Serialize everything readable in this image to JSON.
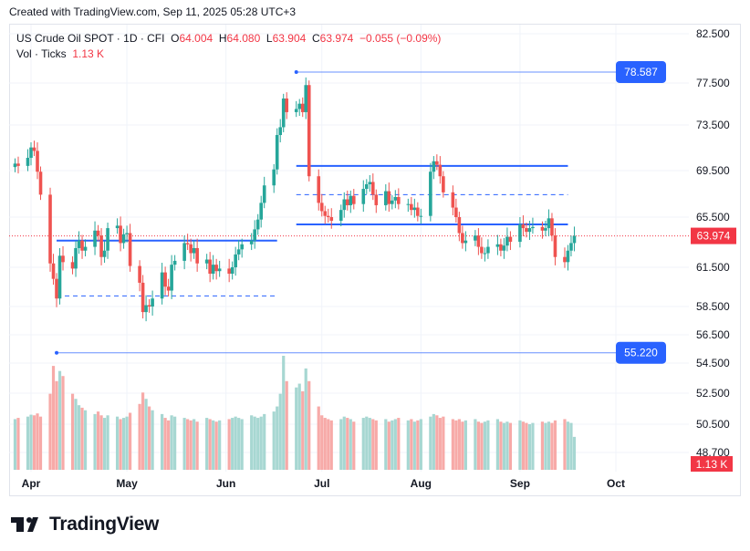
{
  "header": {
    "created": "Created with TradingView.com, Sep 11, 2025 05:28 UTC+3"
  },
  "legend": {
    "symbol": "US Crude Oil SPOT · 1D · CFI",
    "o_label": "O",
    "o": "64.004",
    "h_label": "H",
    "h": "64.080",
    "l_label": "L",
    "l": "63.904",
    "c_label": "C",
    "c": "63.974",
    "change": "−0.055 (−0.09%)",
    "vol_label": "Vol · Ticks",
    "vol": "1.13 K"
  },
  "brand": {
    "name": "TradingView"
  },
  "colors": {
    "up": "#26a69a",
    "down": "#ef5350",
    "line": "#2962ff",
    "current": "#f23645",
    "grid": "#f0f3fa"
  },
  "chart_data": {
    "type": "candlestick",
    "y_axis": {
      "ticks": [
        82.5,
        77.5,
        73.5,
        69.5,
        65.5,
        61.5,
        58.5,
        56.5,
        54.5,
        52.5,
        50.5,
        48.7
      ],
      "tick_labels": [
        "82.500",
        "77.500",
        "73.500",
        "69.500",
        "65.500",
        "61.500",
        "58.500",
        "56.500",
        "54.500",
        "52.500",
        "50.500",
        "48.700"
      ],
      "scale": "log"
    },
    "x_axis": {
      "labels": [
        "Apr",
        "May",
        "Jun",
        "Jul",
        "Aug",
        "Sep",
        "Oct"
      ],
      "label_dates": [
        "2025-04-01",
        "2025-05-01",
        "2025-06-01",
        "2025-07-01",
        "2025-08-01",
        "2025-09-01",
        "2025-10-01"
      ]
    },
    "current_price": {
      "value": 63.974,
      "label": "63.974"
    },
    "volume_label": "1.13 K",
    "price_labels": [
      {
        "value": 78.587,
        "label": "78.587"
      },
      {
        "value": 55.22,
        "label": "55.220"
      }
    ],
    "levels": [
      {
        "value": 78.587,
        "from": "2025-06-23",
        "to": "extend",
        "style": "thin"
      },
      {
        "value": 55.22,
        "from": "2025-04-09",
        "to": "extend",
        "style": "thin"
      },
      {
        "value": 63.6,
        "from": "2025-04-09",
        "to": "2025-06-17",
        "style": "solid"
      },
      {
        "value": 59.3,
        "from": "2025-04-09",
        "to": "2025-06-17",
        "style": "dashed"
      },
      {
        "value": 69.9,
        "from": "2025-06-23",
        "to": "2025-09-16",
        "style": "solid"
      },
      {
        "value": 64.9,
        "from": "2025-06-23",
        "to": "2025-09-16",
        "style": "solid"
      },
      {
        "value": 67.4,
        "from": "2025-06-23",
        "to": "2025-09-16",
        "style": "dashed"
      }
    ],
    "closes": [
      70.1,
      69.9,
      70.6,
      71.5,
      71.2,
      69.4,
      67.4,
      61.8,
      60.6,
      59.1,
      62.4,
      61.9,
      61.4,
      63.0,
      63.6,
      62.8,
      63.1,
      64.4,
      64.0,
      62.3,
      62.8,
      64.6,
      64.8,
      63.4,
      64.1,
      64.2,
      61.6,
      60.3,
      58.1,
      58.6,
      58.5,
      59.1,
      61.1,
      60.0,
      59.7,
      61.7,
      62.0,
      63.4,
      63.3,
      62.6,
      63.0,
      61.8,
      62.1,
      61.0,
      61.7,
      61.2,
      61.4,
      61.0,
      61.5,
      62.5,
      62.9,
      63.3,
      63.6,
      64.5,
      65.3,
      66.7,
      68.2,
      69.6,
      72.6,
      73.3,
      76.0,
      74.7,
      75.0,
      75.5,
      74.7,
      77.3,
      69.0,
      66.7,
      66.0,
      65.6,
      65.5,
      65.2,
      66.1,
      67.0,
      66.5,
      67.3,
      66.6,
      67.9,
      68.3,
      68.5,
      67.4,
      66.5,
      67.7,
      66.6,
      66.9,
      67.2,
      66.6,
      66.6,
      66.1,
      66.3,
      65.6,
      65.6,
      69.4,
      70.3,
      70.0,
      69.0,
      67.6,
      66.3,
      65.5,
      64.2,
      63.4,
      63.6,
      64.0,
      63.1,
      62.6,
      62.6,
      63.1,
      63.3,
      62.8,
      63.2,
      63.9,
      63.5,
      64.9,
      64.6,
      64.3,
      64.6,
      64.7,
      64.4,
      64.6,
      65.4,
      64.0,
      62.3,
      61.9,
      62.8,
      63.4,
      63.974
    ],
    "volumes": [
      400,
      410,
      420,
      435,
      430,
      445,
      420,
      600,
      820,
      700,
      780,
      740,
      600,
      560,
      510,
      490,
      470,
      440,
      460,
      430,
      410,
      430,
      420,
      400,
      410,
      420,
      450,
      520,
      610,
      560,
      500,
      470,
      440,
      410,
      390,
      430,
      420,
      410,
      400,
      390,
      400,
      380,
      410,
      400,
      390,
      380,
      390,
      400,
      410,
      420,
      410,
      400,
      430,
      420,
      410,
      420,
      440,
      460,
      500,
      600,
      900,
      700,
      650,
      680,
      620,
      800,
      700,
      500,
      430,
      410,
      400,
      390,
      400,
      420,
      410,
      400,
      380,
      410,
      420,
      410,
      400,
      390,
      400,
      380,
      390,
      400,
      410,
      390,
      400,
      380,
      390,
      400,
      420,
      440,
      430,
      410,
      420,
      400,
      390,
      400,
      380,
      390,
      400,
      380,
      370,
      380,
      390,
      400,
      380,
      370,
      380,
      370,
      390,
      380,
      370,
      360,
      370,
      380,
      370,
      380,
      370,
      390,
      400,
      380,
      370,
      260
    ]
  }
}
